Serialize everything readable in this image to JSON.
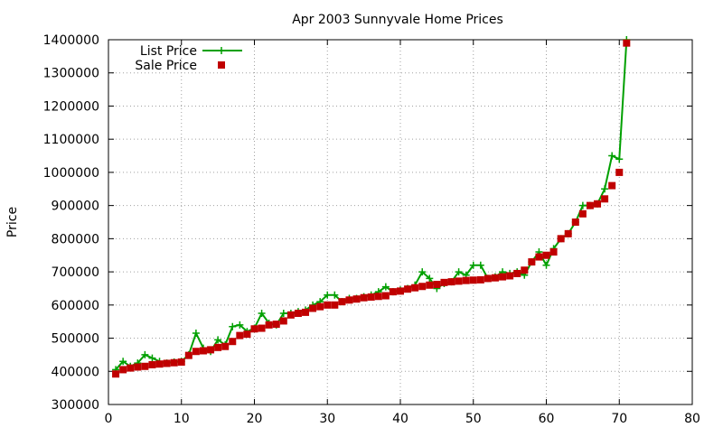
{
  "chart_data": {
    "type": "line",
    "title": "Apr 2003 Sunnyvale Home Prices",
    "xlabel": "",
    "ylabel": "Price",
    "xlim": [
      0,
      80
    ],
    "ylim": [
      300000,
      1400000
    ],
    "x_ticks": [
      "0",
      "10",
      "20",
      "30",
      "40",
      "50",
      "60",
      "70",
      "80"
    ],
    "y_ticks": [
      "300000",
      "400000",
      "500000",
      "600000",
      "700000",
      "800000",
      "900000",
      "1000000",
      "1100000",
      "1200000",
      "1300000",
      "1400000"
    ],
    "grid": true,
    "legend_position": "top-left",
    "series": [
      {
        "name": "List Price",
        "style": "line-with-plus-markers",
        "color": "#00a000",
        "x": [
          1,
          2,
          3,
          4,
          5,
          6,
          7,
          8,
          9,
          10,
          11,
          12,
          13,
          14,
          15,
          16,
          17,
          18,
          19,
          20,
          21,
          22,
          23,
          24,
          25,
          26,
          27,
          28,
          29,
          30,
          31,
          32,
          33,
          34,
          35,
          36,
          37,
          38,
          39,
          40,
          41,
          42,
          43,
          44,
          45,
          46,
          47,
          48,
          49,
          50,
          51,
          52,
          53,
          54,
          55,
          56,
          57,
          58,
          59,
          60,
          61,
          62,
          63,
          64,
          65,
          66,
          67,
          68,
          69,
          70,
          71
        ],
        "values": [
          405000,
          430000,
          415000,
          425000,
          450000,
          440000,
          430000,
          425000,
          428000,
          430000,
          450000,
          515000,
          470000,
          460000,
          495000,
          480000,
          535000,
          540000,
          520000,
          530000,
          575000,
          545000,
          540000,
          575000,
          575000,
          580000,
          585000,
          600000,
          610000,
          630000,
          630000,
          610000,
          620000,
          620000,
          625000,
          630000,
          640000,
          655000,
          640000,
          645000,
          650000,
          660000,
          700000,
          680000,
          650000,
          665000,
          670000,
          700000,
          690000,
          720000,
          720000,
          680000,
          685000,
          700000,
          695000,
          700000,
          690000,
          730000,
          760000,
          720000,
          770000,
          800000,
          815000,
          850000,
          900000,
          900000,
          905000,
          950000,
          1050000,
          1040000,
          1400000
        ]
      },
      {
        "name": "Sale Price",
        "style": "square-markers",
        "color": "#c00000",
        "x": [
          1,
          2,
          3,
          4,
          5,
          6,
          7,
          8,
          9,
          10,
          11,
          12,
          13,
          14,
          15,
          16,
          17,
          18,
          19,
          20,
          21,
          22,
          23,
          24,
          25,
          26,
          27,
          28,
          29,
          30,
          31,
          32,
          33,
          34,
          35,
          36,
          37,
          38,
          39,
          40,
          41,
          42,
          43,
          44,
          45,
          46,
          47,
          48,
          49,
          50,
          51,
          52,
          53,
          54,
          55,
          56,
          57,
          58,
          59,
          60,
          61,
          62,
          63,
          64,
          65,
          66,
          67,
          68,
          69,
          70,
          71
        ],
        "values": [
          392000,
          405000,
          410000,
          413000,
          415000,
          420000,
          422000,
          424000,
          426000,
          428000,
          448000,
          460000,
          462000,
          465000,
          472000,
          475000,
          490000,
          508000,
          512000,
          528000,
          530000,
          540000,
          542000,
          552000,
          570000,
          575000,
          578000,
          590000,
          595000,
          600000,
          600000,
          610000,
          615000,
          618000,
          622000,
          624000,
          626000,
          628000,
          640000,
          642000,
          648000,
          652000,
          656000,
          660000,
          662000,
          668000,
          670000,
          672000,
          674000,
          675000,
          676000,
          680000,
          682000,
          685000,
          688000,
          695000,
          705000,
          730000,
          745000,
          750000,
          760000,
          800000,
          815000,
          850000,
          875000,
          900000,
          905000,
          920000,
          960000,
          1000000,
          1390000
        ]
      }
    ]
  }
}
